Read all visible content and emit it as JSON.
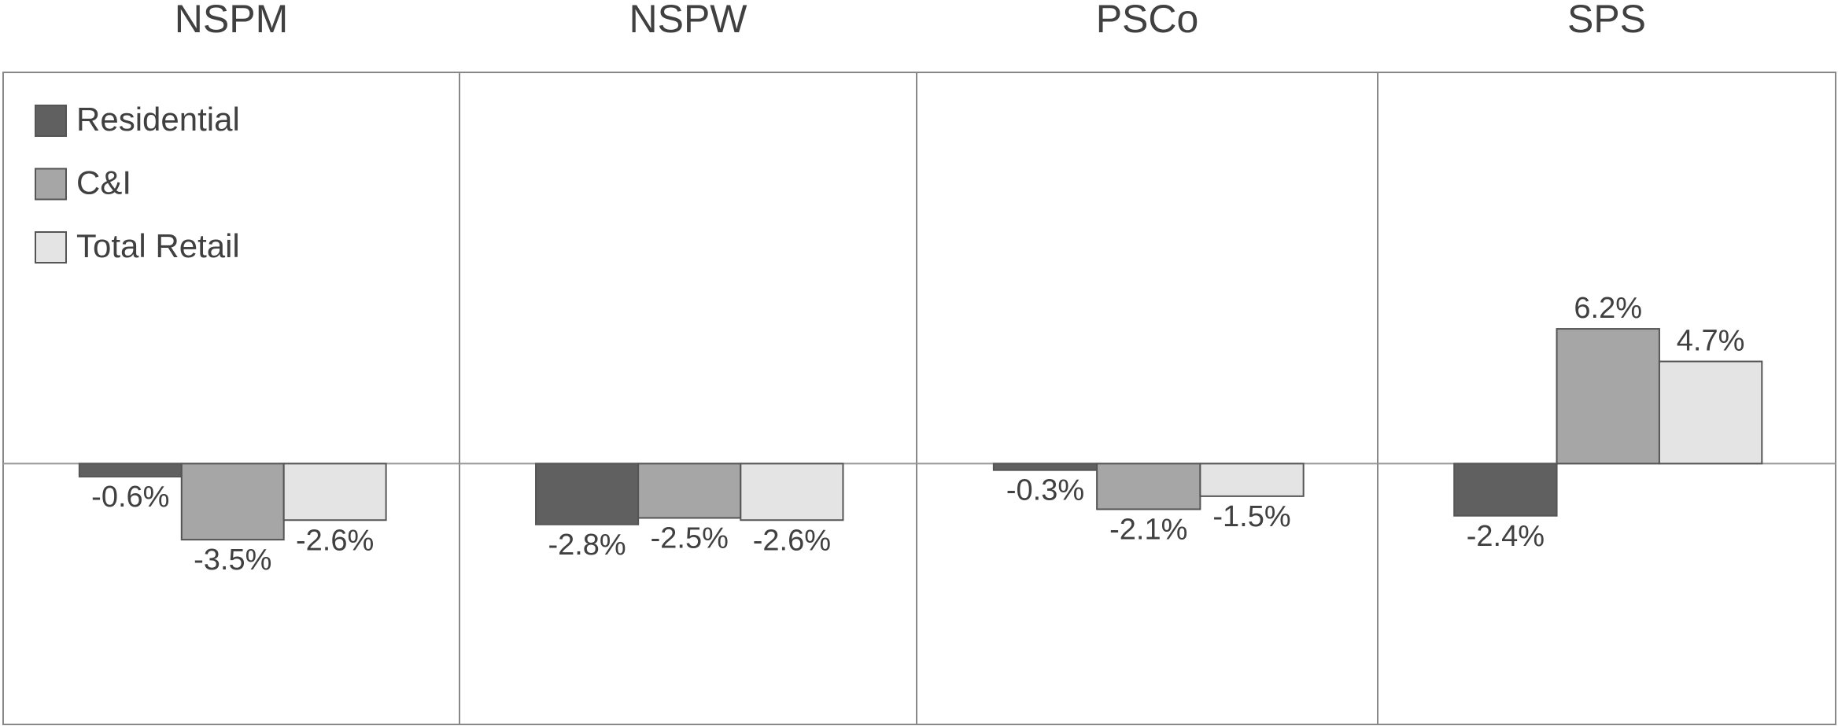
{
  "chart_data": {
    "type": "bar",
    "categories": [
      "NSPM",
      "NSPW",
      "PSCo",
      "SPS"
    ],
    "series": [
      {
        "name": "Residential",
        "color": "#606060",
        "values": [
          -0.6,
          -2.8,
          -0.3,
          -2.4
        ],
        "value_labels": [
          "-0.6%",
          "-2.8%",
          "-0.3%",
          "-2.4%"
        ]
      },
      {
        "name": "C&I",
        "color": "#a6a6a6",
        "values": [
          -3.5,
          -2.5,
          -2.1,
          6.2
        ],
        "value_labels": [
          "-3.5%",
          "-2.5%",
          "-2.1%",
          "6.2%"
        ]
      },
      {
        "name": "Total Retail",
        "color": "#e4e4e4",
        "values": [
          -2.6,
          -2.6,
          -1.5,
          4.7
        ],
        "value_labels": [
          "-2.6%",
          "-2.6%",
          "-1.5%",
          "4.7%"
        ]
      }
    ],
    "ylim": [
      -12,
      18
    ],
    "legend": "upper left"
  }
}
